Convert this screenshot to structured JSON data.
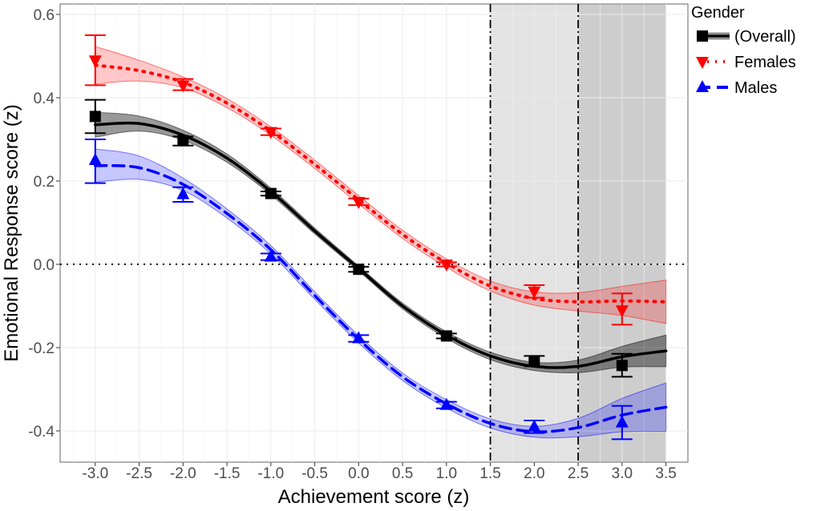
{
  "chart_data": {
    "type": "line",
    "title": "",
    "xlabel": "Achievement score (z)",
    "ylabel": "Emotional Response score (z)",
    "xlim": [
      -3.4,
      3.75
    ],
    "ylim": [
      -0.475,
      0.625
    ],
    "x_ticks": [
      -3.0,
      -2.5,
      -2.0,
      -1.5,
      -1.0,
      -0.5,
      0.0,
      0.5,
      1.0,
      1.5,
      2.0,
      2.5,
      3.0,
      3.5
    ],
    "x_tick_labels": [
      "-3.0",
      "-2.5",
      "-2.0",
      "-1.5",
      "-1.0",
      "-0.5",
      "0.0",
      "0.5",
      "1.0",
      "1.5",
      "2.0",
      "2.5",
      "3.0",
      "3.5"
    ],
    "y_ticks": [
      -0.4,
      -0.2,
      0.0,
      0.2,
      0.4,
      0.6
    ],
    "y_tick_labels": [
      "-0.4",
      "-0.2",
      "0.0",
      "0.2",
      "0.4",
      "0.6"
    ],
    "grid": true,
    "reference_hline": 0.0,
    "reference_vlines": [
      1.5,
      2.5
    ],
    "shaded_regions": [
      {
        "from": 1.5,
        "to": 2.5,
        "color": "#e3e3e3"
      },
      {
        "from": 2.5,
        "to": 3.5,
        "color": "#cdcdcd"
      }
    ],
    "legend": {
      "title": "Gender",
      "placement": "top-right"
    },
    "curve_x": [
      -3.0,
      -2.5,
      -2.0,
      -1.5,
      -1.0,
      -0.5,
      0.0,
      0.5,
      1.0,
      1.5,
      2.0,
      2.5,
      3.0,
      3.5
    ],
    "series": [
      {
        "name": "(Overall)",
        "color": "#000000",
        "ribbon_color": "#000000",
        "marker": "square",
        "line": "solid",
        "points_x": [
          -3,
          -2,
          -1,
          0,
          1,
          2,
          3
        ],
        "points_y": [
          0.355,
          0.297,
          0.17,
          -0.012,
          -0.172,
          -0.232,
          -0.243
        ],
        "err_low": [
          0.315,
          0.285,
          0.165,
          -0.018,
          -0.178,
          -0.245,
          -0.27
        ],
        "err_high": [
          0.395,
          0.307,
          0.175,
          -0.006,
          -0.166,
          -0.22,
          -0.215
        ],
        "curve_y": [
          0.335,
          0.338,
          0.31,
          0.255,
          0.175,
          0.08,
          -0.01,
          -0.1,
          -0.17,
          -0.22,
          -0.245,
          -0.245,
          -0.222,
          -0.208
        ],
        "ribbon_halfwidth": [
          0.03,
          0.018,
          0.012,
          0.01,
          0.008,
          0.007,
          0.006,
          0.007,
          0.008,
          0.009,
          0.01,
          0.015,
          0.025,
          0.038
        ]
      },
      {
        "name": "Females",
        "color": "#ff0000",
        "ribbon_color": "#ff0000",
        "marker": "triangle-down",
        "line": "dotted",
        "points_x": [
          -3,
          -2,
          -1,
          0,
          1,
          2,
          3
        ],
        "points_y": [
          0.49,
          0.43,
          0.318,
          0.15,
          0.0,
          -0.065,
          -0.11
        ],
        "err_low": [
          0.43,
          0.418,
          0.31,
          0.142,
          -0.005,
          -0.08,
          -0.145
        ],
        "err_high": [
          0.55,
          0.445,
          0.326,
          0.158,
          0.005,
          -0.05,
          -0.07
        ],
        "curve_y": [
          0.478,
          0.465,
          0.437,
          0.387,
          0.32,
          0.24,
          0.155,
          0.072,
          0.003,
          -0.052,
          -0.082,
          -0.09,
          -0.088,
          -0.09
        ],
        "ribbon_halfwidth": [
          0.045,
          0.025,
          0.013,
          0.011,
          0.01,
          0.01,
          0.01,
          0.01,
          0.01,
          0.012,
          0.016,
          0.022,
          0.035,
          0.052
        ]
      },
      {
        "name": "Males",
        "color": "#0000ff",
        "ribbon_color": "#0000ff",
        "marker": "triangle-up",
        "line": "dashed",
        "points_x": [
          -3,
          -2,
          -1,
          0,
          1,
          2,
          3
        ],
        "points_y": [
          0.25,
          0.168,
          0.018,
          -0.178,
          -0.338,
          -0.39,
          -0.38
        ],
        "err_low": [
          0.195,
          0.15,
          0.01,
          -0.186,
          -0.346,
          -0.405,
          -0.42
        ],
        "err_high": [
          0.3,
          0.185,
          0.026,
          -0.17,
          -0.33,
          -0.375,
          -0.34
        ],
        "curve_y": [
          0.237,
          0.232,
          0.192,
          0.122,
          0.035,
          -0.075,
          -0.18,
          -0.27,
          -0.335,
          -0.382,
          -0.402,
          -0.392,
          -0.362,
          -0.343
        ],
        "ribbon_halfwidth": [
          0.04,
          0.028,
          0.015,
          0.011,
          0.01,
          0.009,
          0.009,
          0.009,
          0.01,
          0.011,
          0.013,
          0.022,
          0.04,
          0.058
        ]
      }
    ]
  }
}
